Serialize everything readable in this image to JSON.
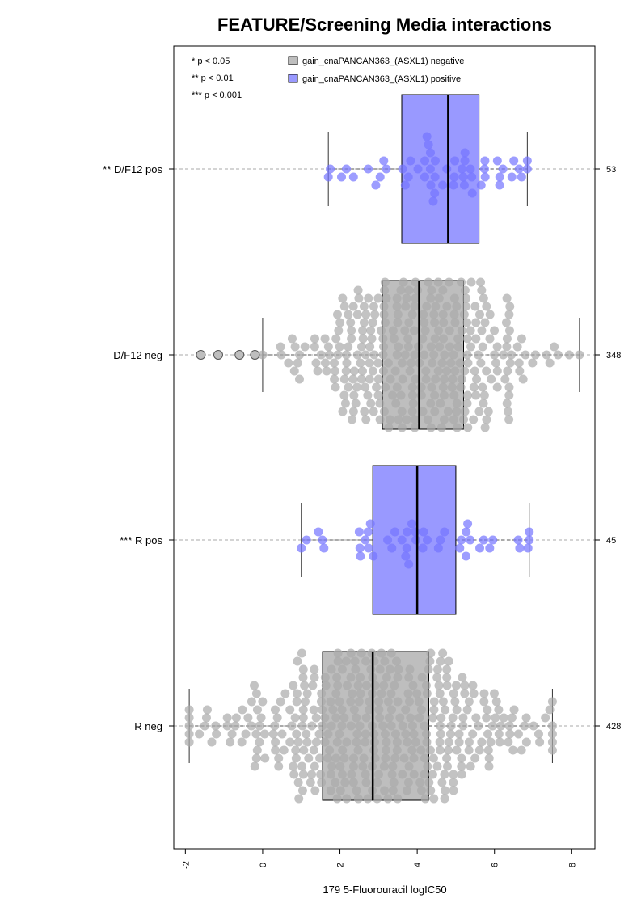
{
  "chart_data": {
    "type": "boxplot-beeswarm",
    "title": "FEATURE/Screening Media interactions",
    "xlabel": "179 5-Fluorouracil logIC50",
    "ylabel": "",
    "xlim": [
      -2.3,
      8.6
    ],
    "xticks": [
      -2,
      0,
      2,
      4,
      6,
      8
    ],
    "xtick_labels": [
      "-2",
      "0",
      "2",
      "4",
      "6",
      "8"
    ],
    "grid": false,
    "legend_position": "top",
    "significance_legend": [
      "* p < 0.05",
      "** p < 0.01",
      "*** p < 0.001"
    ],
    "legend": [
      {
        "label": "gain_cnaPANCAN363_(ASXL1) negative",
        "color": "#bebebe"
      },
      {
        "label": "gain_cnaPANCAN363_(ASXL1) positive",
        "color": "#9999ff"
      }
    ],
    "colors": {
      "negative_box": "#bebebe",
      "positive_box": "#9999ff",
      "negative_point": "#a9a9a9",
      "positive_point": "#7373ff",
      "dashed_line": "#aaaaaa"
    },
    "groups": [
      {
        "label": "** D/F12 pos",
        "n": "53",
        "status": "positive",
        "whisker_low": 1.7,
        "q1": 3.6,
        "median": 4.8,
        "q3": 5.6,
        "whisker_high": 6.85,
        "outliers": []
      },
      {
        "label": "D/F12 neg",
        "n": "348",
        "status": "negative",
        "whisker_low": 0.0,
        "q1": 3.1,
        "median": 4.05,
        "q3": 5.2,
        "whisker_high": 8.2,
        "outliers": [
          -1.6,
          -1.15,
          -0.6,
          -0.2
        ]
      },
      {
        "label": "*** R pos",
        "n": "45",
        "status": "positive",
        "whisker_low": 1.0,
        "q1": 2.85,
        "median": 4.0,
        "q3": 5.0,
        "whisker_high": 6.9,
        "outliers": []
      },
      {
        "label": "R neg",
        "n": "428",
        "status": "negative",
        "whisker_low": -1.9,
        "q1": 1.55,
        "median": 2.85,
        "q3": 4.3,
        "whisker_high": 7.5,
        "outliers": []
      }
    ]
  }
}
